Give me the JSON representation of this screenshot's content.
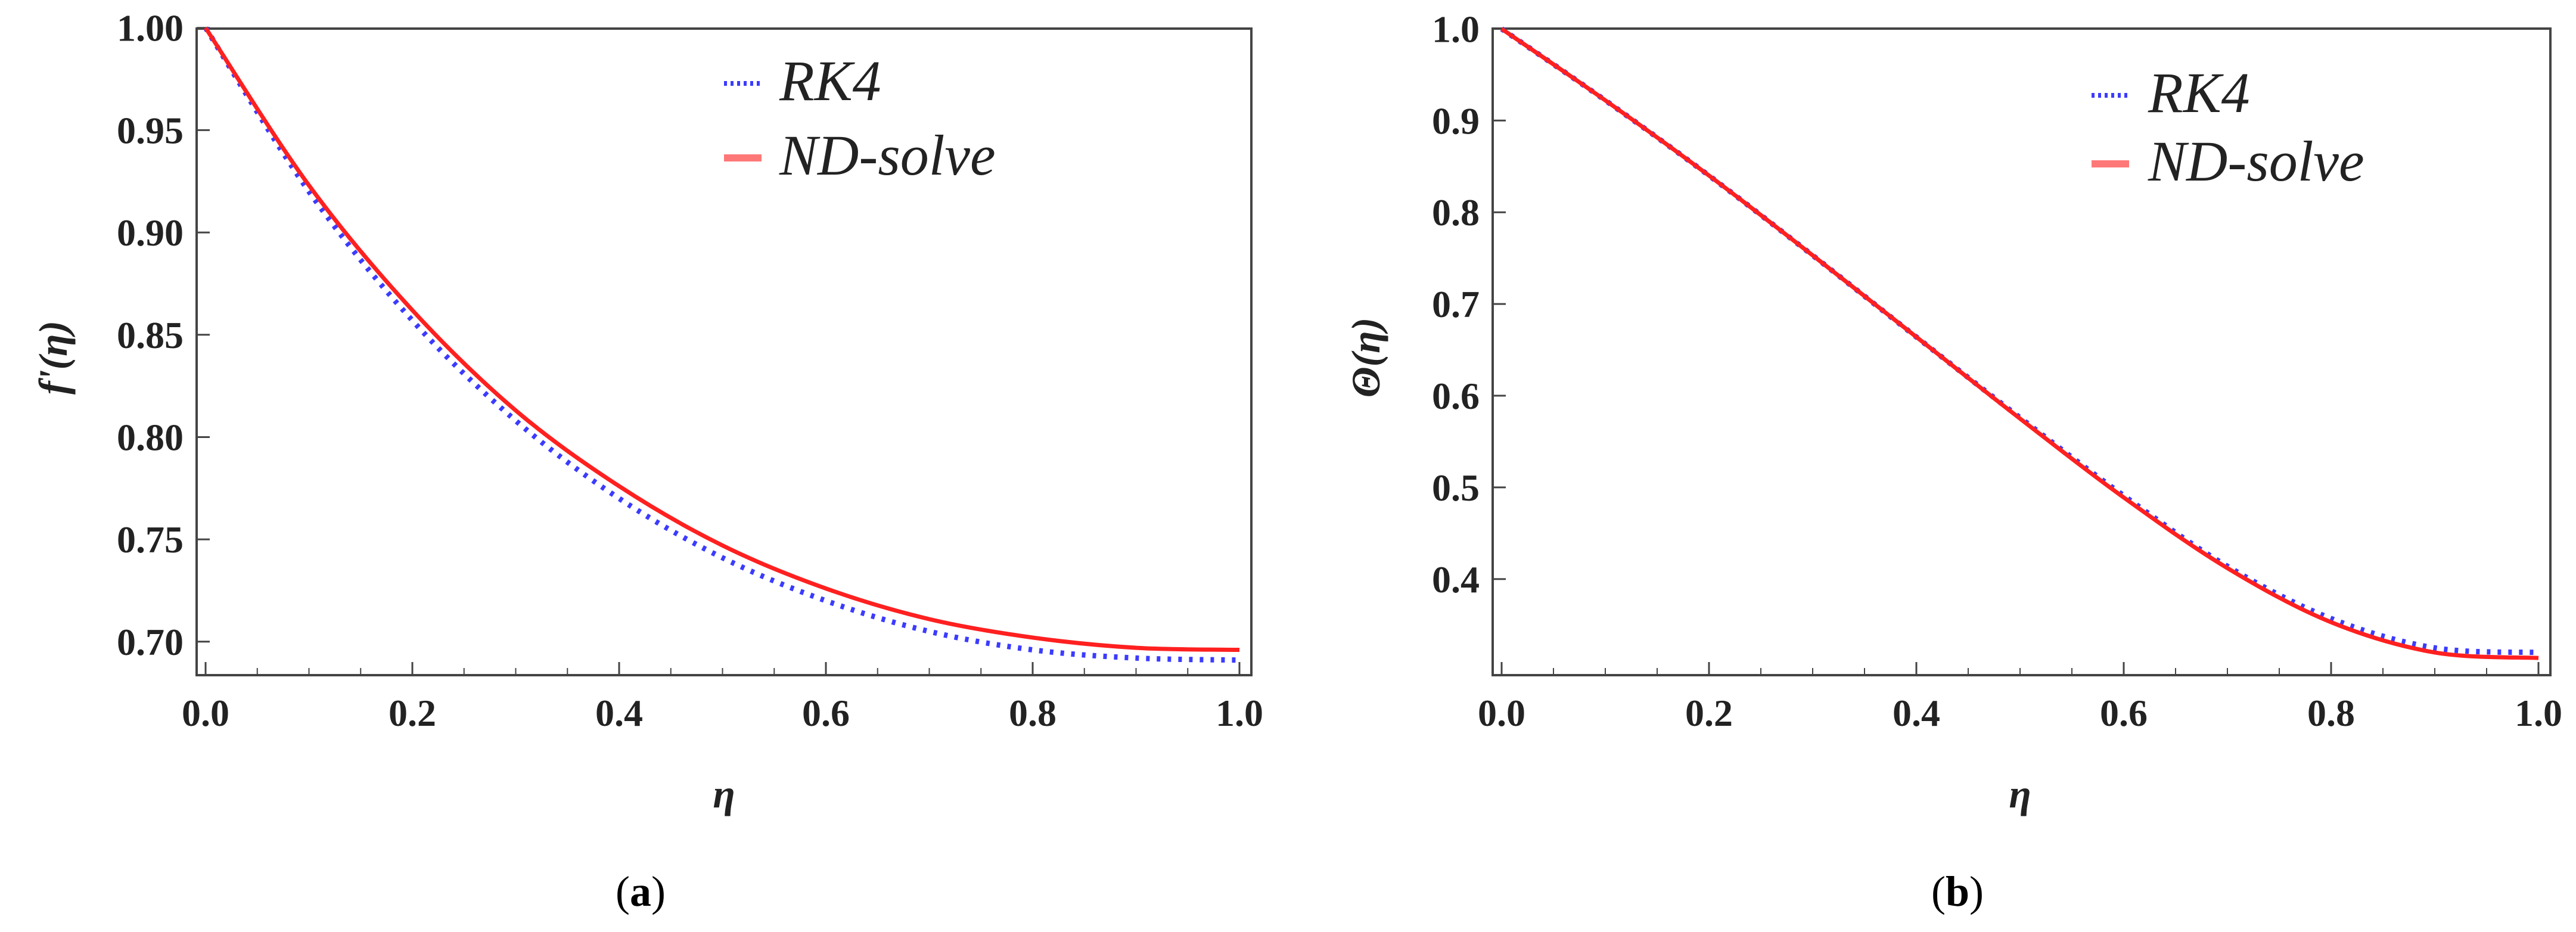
{
  "colors": {
    "rk4": "#3b3bff",
    "ndsolve": "#ff2020",
    "axis": "#444444"
  },
  "chart_data": [
    {
      "type": "line",
      "panel": "a",
      "caption": "(a)",
      "caption_letter": "a",
      "xlabel": "η",
      "ylabel": "f'(η)",
      "xlim": [
        0.0,
        1.0
      ],
      "ylim": [
        0.688,
        1.004
      ],
      "xticks": [
        "0.0",
        "0.2",
        "0.4",
        "0.6",
        "0.8",
        "1.0"
      ],
      "yticks": [
        "0.70",
        "0.75",
        "0.80",
        "0.85",
        "0.90",
        "0.95",
        "1.00"
      ],
      "legend": [
        "RK4",
        "ND-solve"
      ],
      "legend_position": "top-right",
      "x": [
        0.0,
        0.1,
        0.2,
        0.3,
        0.4,
        0.5,
        0.6,
        0.7,
        0.8,
        0.9,
        1.0
      ],
      "series": [
        {
          "name": "RK4",
          "style": "dotted",
          "color": "#3b3bff",
          "values": [
            1.0,
            0.92,
            0.857,
            0.808,
            0.77,
            0.741,
            0.72,
            0.705,
            0.696,
            0.692,
            0.691
          ]
        },
        {
          "name": "ND-solve",
          "style": "solid",
          "color": "#ff2020",
          "values": [
            1.0,
            0.923,
            0.862,
            0.813,
            0.776,
            0.747,
            0.726,
            0.711,
            0.702,
            0.697,
            0.696
          ]
        }
      ]
    },
    {
      "type": "line",
      "panel": "b",
      "caption": "(b)",
      "caption_letter": "b",
      "xlabel": "η",
      "ylabel": "Θ(η)",
      "xlim": [
        0.0,
        1.0
      ],
      "ylim": [
        0.305,
        1.01
      ],
      "xticks": [
        "0.0",
        "0.2",
        "0.4",
        "0.6",
        "0.8",
        "1.0"
      ],
      "yticks": [
        "0.4",
        "0.5",
        "0.6",
        "0.7",
        "0.8",
        "0.9",
        "1.0"
      ],
      "legend": [
        "RK4",
        "ND-solve"
      ],
      "legend_position": "top-right",
      "x": [
        0.0,
        0.1,
        0.2,
        0.3,
        0.4,
        0.5,
        0.6,
        0.7,
        0.8,
        0.9,
        1.0
      ],
      "series": [
        {
          "name": "RK4",
          "style": "dotted",
          "color": "#3b3bff",
          "values": [
            1.0,
            0.922,
            0.84,
            0.753,
            0.664,
            0.576,
            0.491,
            0.414,
            0.357,
            0.325,
            0.32
          ]
        },
        {
          "name": "ND-solve",
          "style": "solid",
          "color": "#ff2020",
          "values": [
            1.0,
            0.922,
            0.84,
            0.753,
            0.664,
            0.575,
            0.489,
            0.412,
            0.353,
            0.32,
            0.314
          ]
        }
      ]
    }
  ]
}
